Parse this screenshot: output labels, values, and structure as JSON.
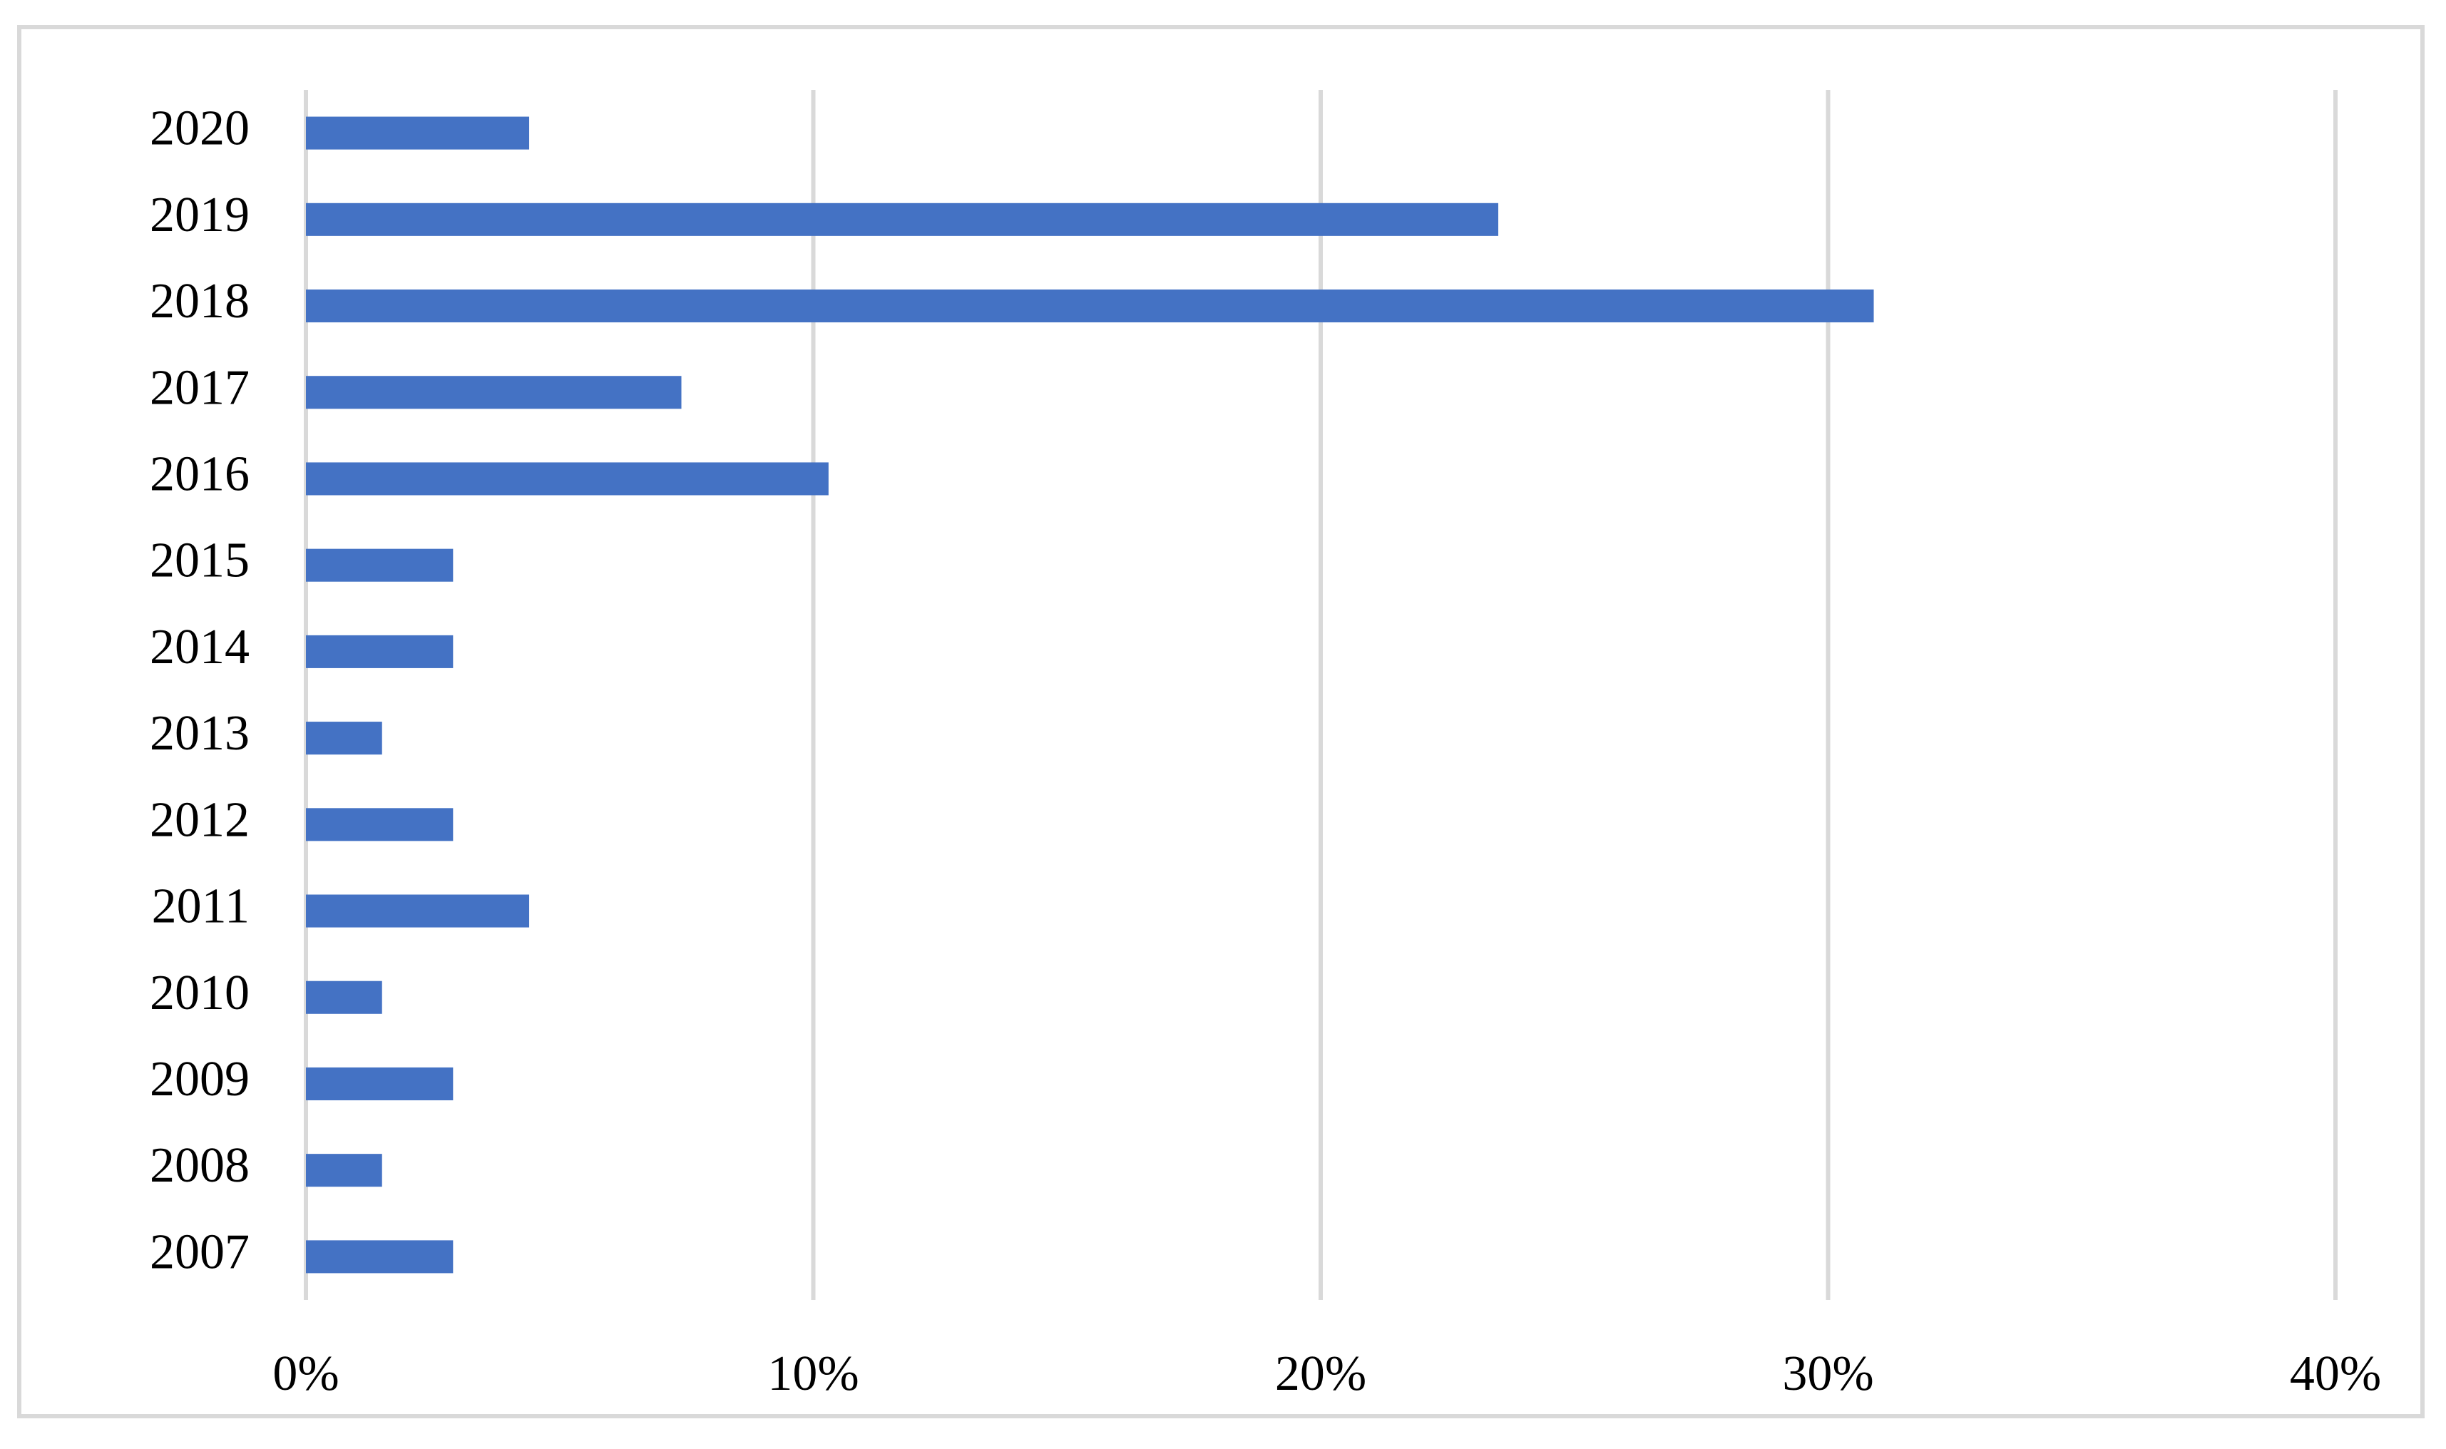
{
  "chart_data": {
    "type": "hbar",
    "categories": [
      "2007",
      "2008",
      "2009",
      "2010",
      "2011",
      "2012",
      "2013",
      "2014",
      "2015",
      "2016",
      "2017",
      "2018",
      "2019",
      "2020"
    ],
    "values": [
      2.9,
      1.5,
      2.9,
      1.5,
      4.4,
      2.9,
      1.5,
      2.9,
      2.9,
      10.3,
      7.4,
      30.9,
      23.5,
      4.4
    ],
    "color": "#4472c4",
    "xlim": [
      0,
      40
    ],
    "xticks": [
      {
        "value": 0,
        "label": "0%"
      },
      {
        "value": 10,
        "label": "10%"
      },
      {
        "value": 20,
        "label": "20%"
      },
      {
        "value": 30,
        "label": "30%"
      },
      {
        "value": 40,
        "label": "40%"
      }
    ],
    "grid": true
  }
}
